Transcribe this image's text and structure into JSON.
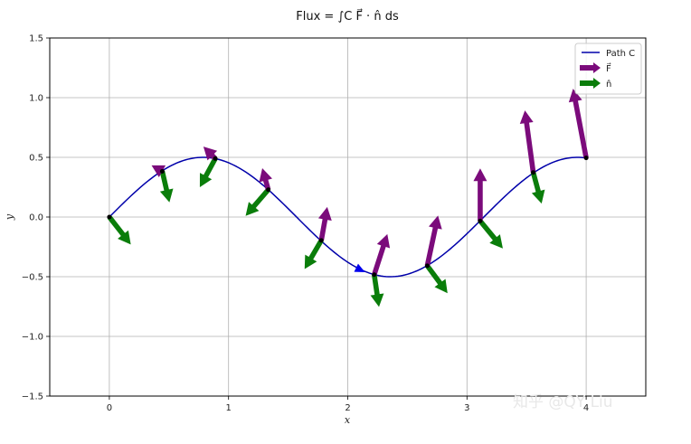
{
  "chart_data": {
    "type": "line",
    "title": "Flux = ∫C F⃗ · n̂ ds",
    "xlabel": "x",
    "ylabel": "y",
    "xlim": [
      -0.5,
      4.5
    ],
    "ylim": [
      -1.5,
      1.5
    ],
    "grid": true,
    "legend_position": "top-right",
    "xticks": [
      0,
      1,
      2,
      3,
      4
    ],
    "yticks": [
      -1.5,
      -1.0,
      -0.5,
      0.0,
      0.5,
      1.0,
      1.5
    ],
    "xtick_labels": [
      "0",
      "1",
      "2",
      "3",
      "4"
    ],
    "ytick_labels": [
      "−1.5",
      "−1.0",
      "−0.5",
      "0.0",
      "0.5",
      "1.0",
      "1.5"
    ],
    "series": [
      {
        "name": "Path C",
        "kind": "line",
        "color": "#0000aa",
        "function": "y = 0.5·sin(2x), x ∈ [0, 4]"
      },
      {
        "name": "F⃗",
        "kind": "vectors",
        "color": "#7b0b7b",
        "points": [
          {
            "x": 0.0,
            "y": 0.0,
            "dx": 0.0,
            "dy": 0.0
          },
          {
            "x": 0.444,
            "y": 0.383,
            "dx": -0.09,
            "dy": 0.05
          },
          {
            "x": 0.889,
            "y": 0.49,
            "dx": -0.1,
            "dy": 0.1
          },
          {
            "x": 1.333,
            "y": 0.229,
            "dx": -0.05,
            "dy": 0.18
          },
          {
            "x": 1.778,
            "y": -0.196,
            "dx": 0.05,
            "dy": 0.28
          },
          {
            "x": 2.222,
            "y": -0.483,
            "dx": 0.11,
            "dy": 0.34
          },
          {
            "x": 2.667,
            "y": -0.408,
            "dx": 0.09,
            "dy": 0.42
          },
          {
            "x": 3.111,
            "y": -0.033,
            "dx": 0.0,
            "dy": 0.44
          },
          {
            "x": 3.556,
            "y": 0.373,
            "dx": -0.07,
            "dy": 0.52
          },
          {
            "x": 4.0,
            "y": 0.495,
            "dx": -0.11,
            "dy": 0.58
          }
        ]
      },
      {
        "name": "n̂",
        "kind": "vectors",
        "color": "#0a7d0a",
        "points": [
          {
            "x": 0.0,
            "y": 0.0,
            "dx": 0.18,
            "dy": -0.23
          },
          {
            "x": 0.444,
            "y": 0.383,
            "dx": 0.06,
            "dy": -0.26
          },
          {
            "x": 0.889,
            "y": 0.49,
            "dx": -0.13,
            "dy": -0.24
          },
          {
            "x": 1.333,
            "y": 0.229,
            "dx": -0.19,
            "dy": -0.22
          },
          {
            "x": 1.778,
            "y": -0.196,
            "dx": -0.14,
            "dy": -0.24
          },
          {
            "x": 2.222,
            "y": -0.483,
            "dx": 0.04,
            "dy": -0.27
          },
          {
            "x": 2.667,
            "y": -0.408,
            "dx": 0.17,
            "dy": -0.23
          },
          {
            "x": 3.111,
            "y": -0.033,
            "dx": 0.19,
            "dy": -0.23
          },
          {
            "x": 3.556,
            "y": 0.373,
            "dx": 0.07,
            "dy": -0.26
          },
          {
            "x": 4.0,
            "y": 0.495,
            "dx": 0.0,
            "dy": 0.0
          }
        ]
      }
    ],
    "direction_arrow": {
      "x": 2.1,
      "y": -0.44,
      "color": "#0000ee"
    },
    "legend": [
      {
        "label": "Path C",
        "style": "line",
        "color": "#0000aa"
      },
      {
        "label": "F⃗",
        "style": "arrow",
        "color": "#7b0b7b"
      },
      {
        "label": "n̂",
        "style": "arrow",
        "color": "#0a7d0a"
      }
    ]
  },
  "watermark": "知乎 @QY Liu"
}
